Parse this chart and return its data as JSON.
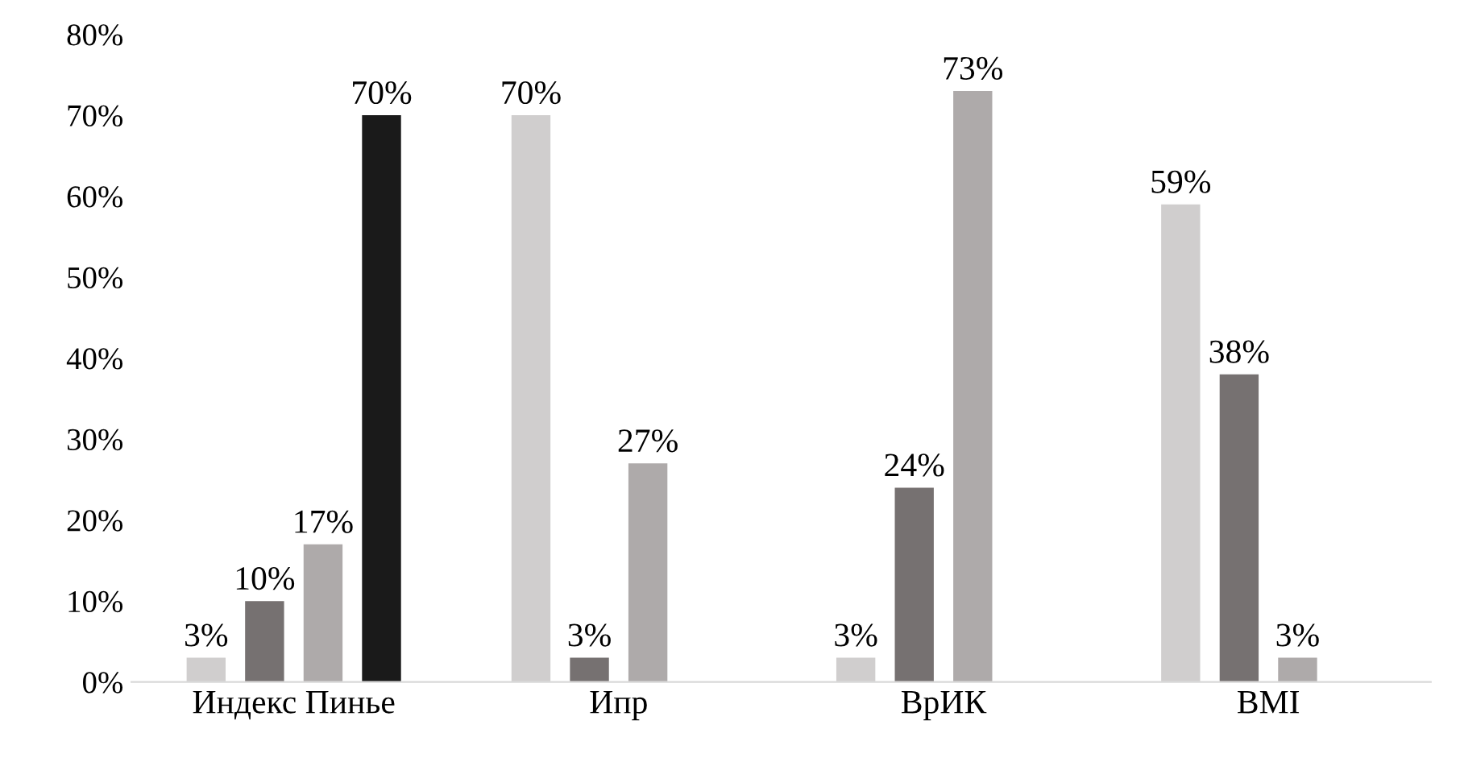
{
  "chart_data": {
    "type": "bar",
    "categories": [
      "Индекс Пинье",
      "Ипр",
      "ВрИК",
      "BMI"
    ],
    "series": [
      {
        "color": "#d0cece",
        "values": [
          3,
          70,
          3,
          59
        ],
        "value_labels": [
          "3%",
          "70%",
          "3%",
          "59%"
        ]
      },
      {
        "color": "#767171",
        "values": [
          10,
          3,
          24,
          38
        ],
        "value_labels": [
          "10%",
          "3%",
          "24%",
          "38%"
        ]
      },
      {
        "color": "#aeaaaa",
        "values": [
          17,
          27,
          73,
          3
        ],
        "value_labels": [
          "17%",
          "27%",
          "73%",
          "3%"
        ]
      },
      {
        "color": "#1a1a1a",
        "values": [
          70,
          null,
          null,
          null
        ],
        "value_labels": [
          "70%",
          null,
          null,
          null
        ]
      }
    ],
    "ylim": [
      0,
      80
    ],
    "yticks": [
      {
        "value": 0,
        "label": "0%"
      },
      {
        "value": 10,
        "label": "10%"
      },
      {
        "value": 20,
        "label": "20%"
      },
      {
        "value": 30,
        "label": "30%"
      },
      {
        "value": 40,
        "label": "40%"
      },
      {
        "value": 50,
        "label": "50%"
      },
      {
        "value": 60,
        "label": "60%"
      },
      {
        "value": 70,
        "label": "70%"
      },
      {
        "value": 80,
        "label": "80%"
      }
    ],
    "grid": false
  }
}
